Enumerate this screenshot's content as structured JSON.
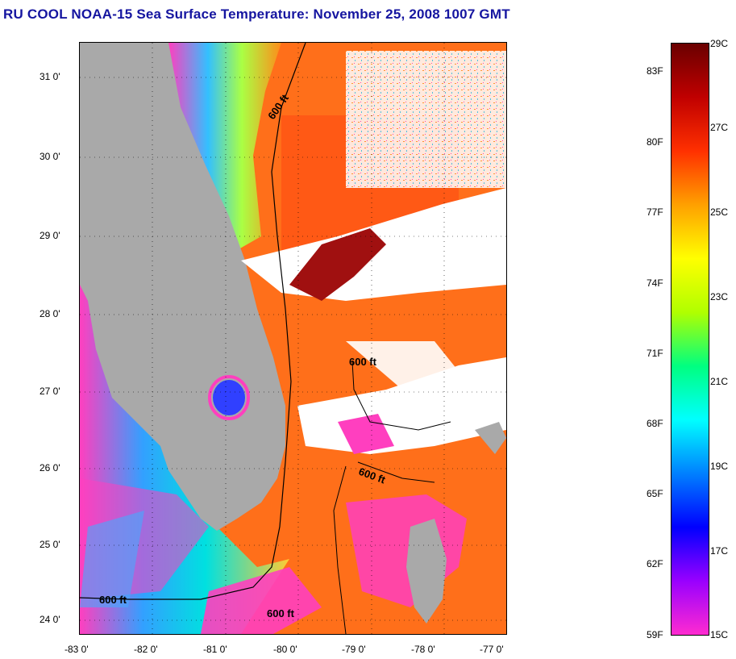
{
  "title": "RU COOL  NOAA-15  Sea Surface Temperature:  November 25, 2008 1007 GMT",
  "map": {
    "lat_labels": [
      "31 0'",
      "30 0'",
      "29 0'",
      "28 0'",
      "27 0'",
      "26 0'",
      "25 0'",
      "24 0'"
    ],
    "lon_labels": [
      "-83 0'",
      "-82 0'",
      "-81 0'",
      "-80 0'",
      "-79 0'",
      "-78 0'",
      "-77 0'"
    ],
    "contour_labels": [
      "600 ft",
      "600 ft",
      "600 ft",
      "600 ft",
      "600 ft"
    ],
    "colors": {
      "land": "#a9a9a9",
      "cloud": "#ffffff",
      "warm_water": "#ff7a1a",
      "cool_water": "#ff3fbf"
    }
  },
  "colorbar": {
    "fahrenheit_labels": [
      "83F",
      "80F",
      "77F",
      "74F",
      "71F",
      "68F",
      "65F",
      "62F",
      "59F"
    ],
    "celsius_labels": [
      "29C",
      "27C",
      "25C",
      "23C",
      "21C",
      "19C",
      "17C",
      "15C"
    ],
    "gradient_colors": [
      "#ff2bd0",
      "#9900ff",
      "#0000ff",
      "#0080ff",
      "#00ffff",
      "#00ff80",
      "#b0ff00",
      "#ffff00",
      "#ffa000",
      "#ff3000",
      "#c00000",
      "#6a0000"
    ]
  }
}
